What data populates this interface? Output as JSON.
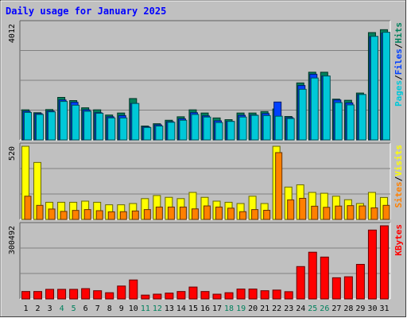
{
  "colors": {
    "background": "#c0c0c0",
    "panel_bg": "#c0c0c0",
    "grid": "#808080",
    "title": "#0000ff",
    "hits": "#00805c",
    "files": "#0040ff",
    "pages": "#00c8d8",
    "visits": "#ffff00",
    "sites": "#ff8000",
    "kbytes": "#ff0000",
    "weekend_label": "#00805c",
    "weekday_label": "#000000"
  },
  "chart_data": {
    "type": "bar",
    "title": "Daily usage for January 2025",
    "categories": [
      "1",
      "2",
      "3",
      "4",
      "5",
      "6",
      "7",
      "8",
      "9",
      "10",
      "11",
      "12",
      "13",
      "14",
      "15",
      "16",
      "17",
      "18",
      "19",
      "20",
      "21",
      "22",
      "23",
      "24",
      "25",
      "26",
      "27",
      "28",
      "29",
      "30",
      "31"
    ],
    "weekend_days": [
      "4",
      "5",
      "11",
      "12",
      "18",
      "19",
      "25",
      "26"
    ],
    "panels": [
      {
        "ylabel_max": "4012",
        "ymax": 4012,
        "series": [
          {
            "name": "Hits",
            "color": "#00805c",
            "values": [
              1040,
              940,
              1050,
              1470,
              1360,
              1110,
              1040,
              860,
              930,
              1430,
              480,
              560,
              680,
              800,
              1040,
              930,
              760,
              700,
              930,
              930,
              980,
              1070,
              810,
              1970,
              2340,
              2340,
              1410,
              1370,
              1620,
              3710,
              3810
            ]
          },
          {
            "name": "Files",
            "color": "#0040ff",
            "values": [
              990,
              910,
              1000,
              1380,
              1300,
              1040,
              940,
              800,
              840,
              1260,
              450,
              520,
              630,
              730,
              940,
              830,
              660,
              640,
              850,
              860,
              910,
              1310,
              770,
              1880,
              2270,
              2210,
              1380,
              1280,
              1570,
              3570,
              3690
            ]
          },
          {
            "name": "Pages",
            "color": "#00c8d8",
            "values": [
              950,
              880,
              970,
              1330,
              1200,
              990,
              920,
              760,
              760,
              1260,
              430,
              480,
              610,
              680,
              880,
              790,
              600,
              640,
              790,
              850,
              840,
              820,
              740,
              1750,
              2140,
              2210,
              1290,
              1210,
              1570,
              3580,
              3720
            ]
          }
        ],
        "right_labels": [
          {
            "text": "Pages",
            "color": "#00c8d8"
          },
          {
            "text": "Files",
            "color": "#0040ff"
          },
          {
            "text": "Hits",
            "color": "#00805c"
          }
        ]
      },
      {
        "ylabel_max": "520",
        "ymax": 520,
        "series": [
          {
            "name": "Visits",
            "color": "#ffff00",
            "values": [
              520,
              405,
              122,
              122,
              122,
              130,
              122,
              104,
              104,
              113,
              148,
              170,
              157,
              148,
              192,
              157,
              130,
              122,
              113,
              165,
              113,
              520,
              230,
              246,
              192,
              186,
              165,
              140,
              113,
              192,
              156
            ]
          },
          {
            "name": "Sites",
            "color": "#ff8000",
            "values": [
              165,
              100,
              74,
              57,
              64,
              70,
              62,
              54,
              55,
              60,
              70,
              88,
              88,
              88,
              75,
              96,
              88,
              80,
              55,
              70,
              65,
              475,
              139,
              150,
              94,
              86,
              95,
              98,
              96,
              82,
              100
            ]
          }
        ],
        "right_labels": [
          {
            "text": "Sites",
            "color": "#ff8000"
          },
          {
            "text": "Visits",
            "color": "#ffff00"
          }
        ]
      },
      {
        "ylabel_max": "300492",
        "ymax": 300492,
        "series": [
          {
            "name": "KBytes",
            "color": "#ff0000",
            "values": [
              30500,
              30500,
              39400,
              39400,
              39400,
              42300,
              33700,
              25500,
              53000,
              77900,
              15800,
              19600,
              24000,
              30500,
              48800,
              30500,
              19500,
              25600,
              40600,
              40600,
              33700,
              36400,
              29800,
              133000,
              192000,
              172000,
              87000,
              91100,
              142000,
              283000,
              300492
            ]
          }
        ],
        "right_labels": [
          {
            "text": "KBytes",
            "color": "#ff0000"
          }
        ]
      }
    ]
  }
}
